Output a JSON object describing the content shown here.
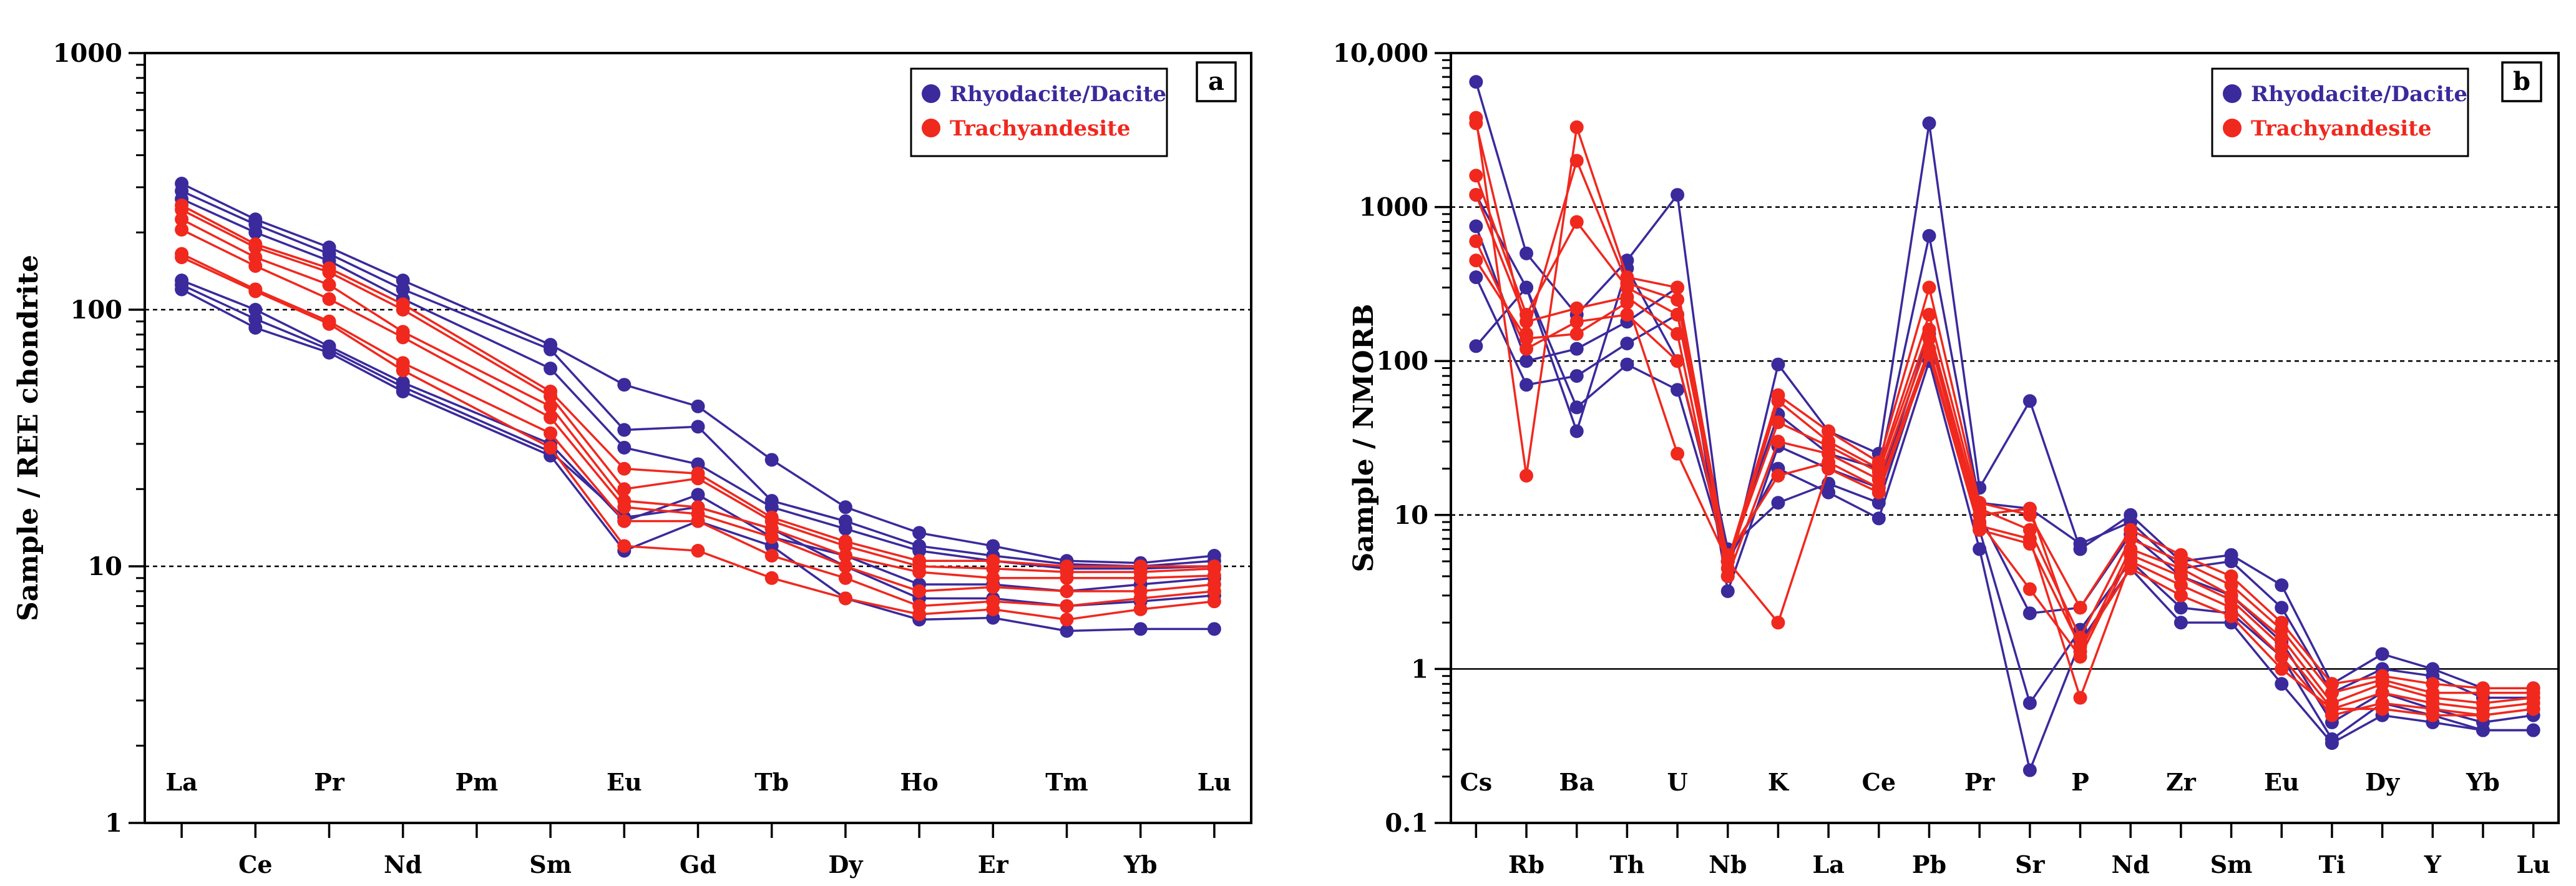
{
  "colors": {
    "rhyodacite": "#3a2a9c",
    "trachyandesite": "#f0281e",
    "axis": "#000000"
  },
  "chart_data": [
    {
      "type": "line",
      "panel": "a",
      "yscale": "log",
      "ylim": [
        1,
        1000
      ],
      "yticks": [
        "1",
        "10",
        "100",
        "1000"
      ],
      "dashed_lines": [
        10,
        100
      ],
      "ylabel": "Sample / REE chondrite",
      "x": [
        "La",
        "Ce",
        "Pr",
        "Nd",
        "Pm",
        "Sm",
        "Eu",
        "Gd",
        "Tb",
        "Dy",
        "Ho",
        "Er",
        "Tm",
        "Yb",
        "Lu"
      ],
      "x_top_labels": [
        "La",
        "Pr",
        "Pm",
        "Eu",
        "Tb",
        "Ho",
        "Tm",
        "Lu"
      ],
      "x_bottom_labels": [
        "Ce",
        "Nd",
        "Sm",
        "Gd",
        "Dy",
        "Er",
        "Yb"
      ],
      "legend": [
        {
          "label": "Rhyodacite/Dacite",
          "group": "rhyodacite"
        },
        {
          "label": "Trachyandesite",
          "group": "trachyandesite"
        }
      ],
      "series": [
        {
          "group": "rhyodacite",
          "values": [
            310,
            225,
            175,
            130,
            null,
            73,
            51,
            42,
            26,
            17,
            13.5,
            12,
            10.5,
            10.3,
            11
          ]
        },
        {
          "group": "rhyodacite",
          "values": [
            290,
            215,
            165,
            120,
            null,
            70,
            34,
            35,
            18,
            15,
            12,
            11,
            10.2,
            10,
            10.5
          ]
        },
        {
          "group": "rhyodacite",
          "values": [
            270,
            200,
            155,
            110,
            null,
            59,
            29,
            25,
            17,
            14,
            11.5,
            10.5,
            9.8,
            9.8,
            10
          ]
        },
        {
          "group": "rhyodacite",
          "values": [
            130,
            100,
            72,
            52,
            null,
            30,
            15,
            19,
            13,
            11,
            8.5,
            8.5,
            8,
            8.5,
            9
          ]
        },
        {
          "group": "rhyodacite",
          "values": [
            125,
            92,
            70,
            50,
            null,
            28,
            15.5,
            17,
            14,
            10,
            7.5,
            7.5,
            7,
            7.3,
            7.7
          ]
        },
        {
          "group": "rhyodacite",
          "values": [
            120,
            85,
            68,
            48,
            null,
            27,
            11.5,
            15,
            12,
            7.5,
            6.2,
            6.3,
            5.6,
            5.7,
            5.7
          ]
        },
        {
          "group": "trachyandesite",
          "values": [
            255,
            180,
            145,
            105,
            null,
            48,
            24,
            23,
            15.5,
            12.5,
            10.5,
            10.5,
            10,
            10,
            10
          ]
        },
        {
          "group": "trachyandesite",
          "values": [
            245,
            175,
            140,
            100,
            null,
            46,
            20,
            22,
            15,
            12,
            10,
            9.8,
            9.5,
            9.5,
            9.8
          ]
        },
        {
          "group": "trachyandesite",
          "values": [
            225,
            160,
            125,
            82,
            null,
            42,
            18,
            17,
            14,
            11,
            9.5,
            9,
            9,
            9,
            9.2
          ]
        },
        {
          "group": "trachyandesite",
          "values": [
            205,
            148,
            110,
            78,
            null,
            38,
            17,
            16,
            13,
            10,
            8,
            8.3,
            8,
            8,
            8.5
          ]
        },
        {
          "group": "trachyandesite",
          "values": [
            165,
            120,
            90,
            62,
            null,
            33,
            15,
            15,
            11,
            9,
            7,
            7.3,
            7,
            7.5,
            8
          ]
        },
        {
          "group": "trachyandesite",
          "values": [
            160,
            118,
            88,
            58,
            null,
            29,
            12,
            11.5,
            9,
            7.5,
            6.5,
            6.8,
            6.2,
            6.8,
            7.3
          ]
        }
      ]
    },
    {
      "type": "line",
      "panel": "b",
      "yscale": "log",
      "ylim": [
        0.1,
        10000
      ],
      "yticks": [
        "0.1",
        "1",
        "10",
        "100",
        "1000",
        "10,000"
      ],
      "dashed_lines": [
        10,
        100,
        1000
      ],
      "solid_lines": [
        1
      ],
      "ylabel": "Sample / NMORB",
      "x": [
        "Cs",
        "Rb",
        "Ba",
        "Th",
        "U",
        "Nb",
        "K",
        "La",
        "Ce",
        "Pb",
        "Pr",
        "Sr",
        "P",
        "Nd",
        "Zr",
        "Sm",
        "Eu",
        "Ti",
        "Dy",
        "Y",
        "Yb",
        "Lu"
      ],
      "x_top_labels": [
        "Cs",
        "Ba",
        "U",
        "K",
        "Ce",
        "Pr",
        "P",
        "Zr",
        "Eu",
        "Dy",
        "Yb"
      ],
      "x_bottom_labels": [
        "Rb",
        "Th",
        "Nb",
        "La",
        "Pb",
        "Sr",
        "Nd",
        "Sm",
        "Ti",
        "Y",
        "Lu"
      ],
      "legend": [
        {
          "label": "Rhyodacite/Dacite",
          "group": "rhyodacite"
        },
        {
          "label": "Trachyandesite",
          "group": "trachyandesite"
        }
      ],
      "series": [
        {
          "group": "rhyodacite",
          "values": [
            6500,
            500,
            200,
            450,
            1200,
            4,
            95,
            35,
            25,
            3500,
            15,
            55,
            6,
            10,
            5,
            5.5,
            3.5,
            0.8,
            1.25,
            1,
            0.75,
            0.75
          ]
        },
        {
          "group": "rhyodacite",
          "values": [
            1200,
            300,
            35,
            400,
            100,
            5,
            45,
            25,
            20,
            650,
            12,
            11,
            6.5,
            9,
            4.5,
            5,
            2.5,
            0.7,
            1,
            0.9,
            0.65,
            0.65
          ]
        },
        {
          "group": "rhyodacite",
          "values": [
            750,
            100,
            120,
            180,
            300,
            3.2,
            28,
            20,
            15,
            150,
            10,
            2.3,
            2.5,
            7.5,
            4,
            3,
            1.5,
            0.45,
            0.7,
            0.55,
            0.45,
            0.5
          ]
        },
        {
          "group": "rhyodacite",
          "values": [
            350,
            70,
            80,
            130,
            200,
            6,
            12,
            16,
            12,
            120,
            8,
            0.6,
            1.8,
            5,
            2.5,
            2.3,
            1.2,
            0.35,
            0.6,
            0.5,
            0.4,
            0.4
          ]
        },
        {
          "group": "rhyodacite",
          "values": [
            125,
            300,
            50,
            95,
            65,
            5,
            20,
            14,
            9.5,
            100,
            6,
            0.22,
            1.5,
            4.5,
            2,
            2,
            0.8,
            0.33,
            0.5,
            0.45,
            0.4,
            0.4
          ]
        },
        {
          "group": "trachyandesite",
          "values": [
            3800,
            18,
            3300,
            350,
            300,
            5,
            60,
            35,
            22,
            300,
            12,
            10,
            2.5,
            8,
            5.5,
            4,
            2,
            0.8,
            0.9,
            0.8,
            0.75,
            0.75
          ]
        },
        {
          "group": "trachyandesite",
          "values": [
            3500,
            150,
            2000,
            320,
            250,
            4.5,
            55,
            30,
            20,
            200,
            11,
            8,
            1.6,
            7,
            5,
            3.5,
            1.8,
            0.7,
            0.85,
            0.7,
            0.7,
            0.7
          ]
        },
        {
          "group": "trachyandesite",
          "values": [
            1600,
            200,
            800,
            300,
            200,
            5,
            40,
            28,
            19,
            160,
            10,
            11,
            1.3,
            6,
            4.5,
            3,
            1.6,
            0.6,
            0.8,
            0.65,
            0.6,
            0.65
          ]
        },
        {
          "group": "trachyandesite",
          "values": [
            1200,
            180,
            220,
            260,
            150,
            4,
            30,
            25,
            17,
            140,
            9,
            3.3,
            1.2,
            5.5,
            4,
            2.8,
            1.4,
            0.55,
            0.7,
            0.6,
            0.55,
            0.6
          ]
        },
        {
          "group": "trachyandesite",
          "values": [
            600,
            120,
            180,
            200,
            100,
            5.5,
            18,
            22,
            15,
            120,
            8.5,
            7,
            0.65,
            5,
            3.5,
            2.5,
            1.2,
            0.5,
            0.6,
            0.55,
            0.5,
            0.55
          ]
        },
        {
          "group": "trachyandesite",
          "values": [
            450,
            140,
            150,
            240,
            25,
            5,
            2,
            20,
            14,
            110,
            8,
            6.5,
            1.4,
            4.5,
            3,
            2.2,
            1,
            0.55,
            0.55,
            0.5,
            0.5,
            0.55
          ]
        }
      ]
    }
  ]
}
